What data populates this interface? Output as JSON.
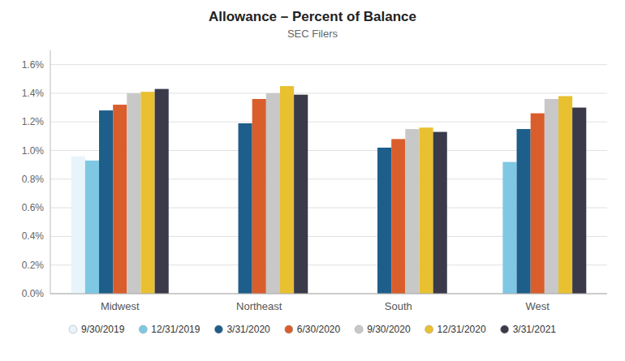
{
  "chart_data": {
    "type": "bar",
    "title": "Allowance – Percent of Balance",
    "subtitle": "SEC Filers",
    "categories": [
      "Midwest",
      "Northeast",
      "South",
      "West"
    ],
    "series": [
      {
        "name": "9/30/2019",
        "color": "#e8f4fb",
        "values": [
          0.0096,
          0.0,
          0.0,
          0.0
        ]
      },
      {
        "name": "12/31/2019",
        "color": "#7ec8e3",
        "values": [
          0.0093,
          0.0,
          0.0,
          0.0092
        ]
      },
      {
        "name": "3/31/2020",
        "color": "#1e5e8a",
        "values": [
          0.0128,
          0.0119,
          0.0102,
          0.0115
        ]
      },
      {
        "name": "6/30/2020",
        "color": "#d95e2b",
        "values": [
          0.0132,
          0.0136,
          0.0108,
          0.0126
        ]
      },
      {
        "name": "9/30/2020",
        "color": "#c8c8c8",
        "values": [
          0.014,
          0.014,
          0.0115,
          0.0136
        ]
      },
      {
        "name": "12/31/2020",
        "color": "#e8c030",
        "values": [
          0.0141,
          0.0145,
          0.0116,
          0.0138
        ]
      },
      {
        "name": "3/31/2021",
        "color": "#3a3a4a",
        "values": [
          0.0143,
          0.0139,
          0.0113,
          0.013
        ]
      }
    ],
    "ylim": [
      0.0,
      0.017
    ],
    "yticks": [
      {
        "value": 0.0,
        "label": "0.0%"
      },
      {
        "value": 0.002,
        "label": "0.2%"
      },
      {
        "value": 0.004,
        "label": "0.4%"
      },
      {
        "value": 0.006,
        "label": "0.6%"
      },
      {
        "value": 0.008,
        "label": "0.8%"
      },
      {
        "value": 0.01,
        "label": "1.0%"
      },
      {
        "value": 0.012,
        "label": "1.2%"
      },
      {
        "value": 0.014,
        "label": "1.4%"
      },
      {
        "value": 0.016,
        "label": "1.6%"
      }
    ],
    "grid": true,
    "legend": "bottom"
  }
}
